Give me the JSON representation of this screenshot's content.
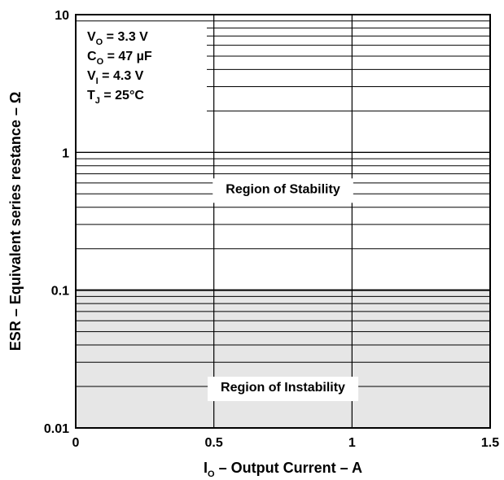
{
  "chart_data": {
    "type": "line",
    "title": "",
    "xlabel": {
      "main": "I",
      "sub": "O",
      "rest": " – Output Current – A"
    },
    "ylabel": "ESR – Equivalent series restance – Ω",
    "x_scale": "linear",
    "y_scale": "log",
    "xlim": [
      0,
      1.5
    ],
    "ylim": [
      0.01,
      10
    ],
    "x_ticks": [
      0,
      0.5,
      1,
      1.5
    ],
    "x_tick_labels": [
      "0",
      "0.5",
      "1",
      "1.5"
    ],
    "y_ticks": [
      0.01,
      0.1,
      1,
      10
    ],
    "y_tick_labels": [
      "0.01",
      "0.1",
      "1",
      "10"
    ],
    "grid": true,
    "boundary": {
      "name": "",
      "x": [
        0,
        1.5
      ],
      "y": [
        0.1,
        0.1
      ]
    },
    "regions": [
      {
        "label": "Region of Stability",
        "x": 0.75,
        "y": 0.55
      },
      {
        "label": "Region of Instability",
        "x": 0.75,
        "y": 0.02
      }
    ],
    "conditions": [
      {
        "main": "V",
        "sub": "O",
        "rest": " = 3.3 V"
      },
      {
        "main": "C",
        "sub": "O",
        "rest": " = 47 µF"
      },
      {
        "main": "V",
        "sub": "I",
        "rest": " = 4.3 V"
      },
      {
        "main": "T",
        "sub": "J",
        "rest": " = 25°C"
      }
    ],
    "colors": {
      "instability_fill": "#e6e6e6",
      "line": "#000000",
      "background": "#ffffff"
    }
  }
}
